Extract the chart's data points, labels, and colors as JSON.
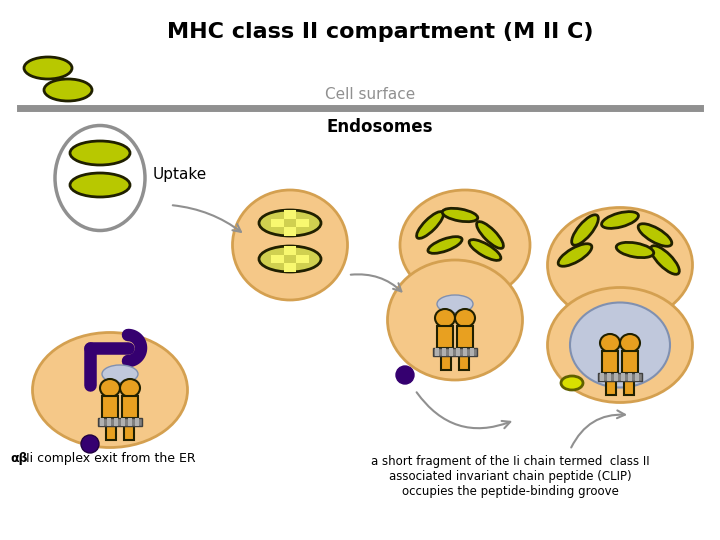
{
  "title": "MHC class II compartment (M II C)",
  "cell_surface_label": "Cell surface",
  "uptake_label": "Uptake",
  "endosomes_label": "Endosomes",
  "bottom_left_label": "αβIi complex exit from the ER",
  "bottom_right_label": "a short fragment of the Ii chain termed  class II\nassociated invariant chain peptide (CLIP)\noccupies the peptide-binding groove",
  "bg_color": "#ffffff",
  "cell_surface_line_color": "#909090",
  "orange_circle_color": "#f5c888",
  "orange_circle_edge": "#d4a050",
  "yellow_green_color": "#b8c800",
  "yellow_green_edge": "#202000",
  "purple_color": "#350070",
  "gray_blue_color": "#c0c8dc",
  "orange_mhc_color": "#e8a020",
  "orange_mhc_edge": "#202000",
  "gray_mem_color": "#808080",
  "checkered_color": "#d0d050",
  "title_fontsize": 16,
  "label_fontsize": 11,
  "small_fontsize": 9
}
